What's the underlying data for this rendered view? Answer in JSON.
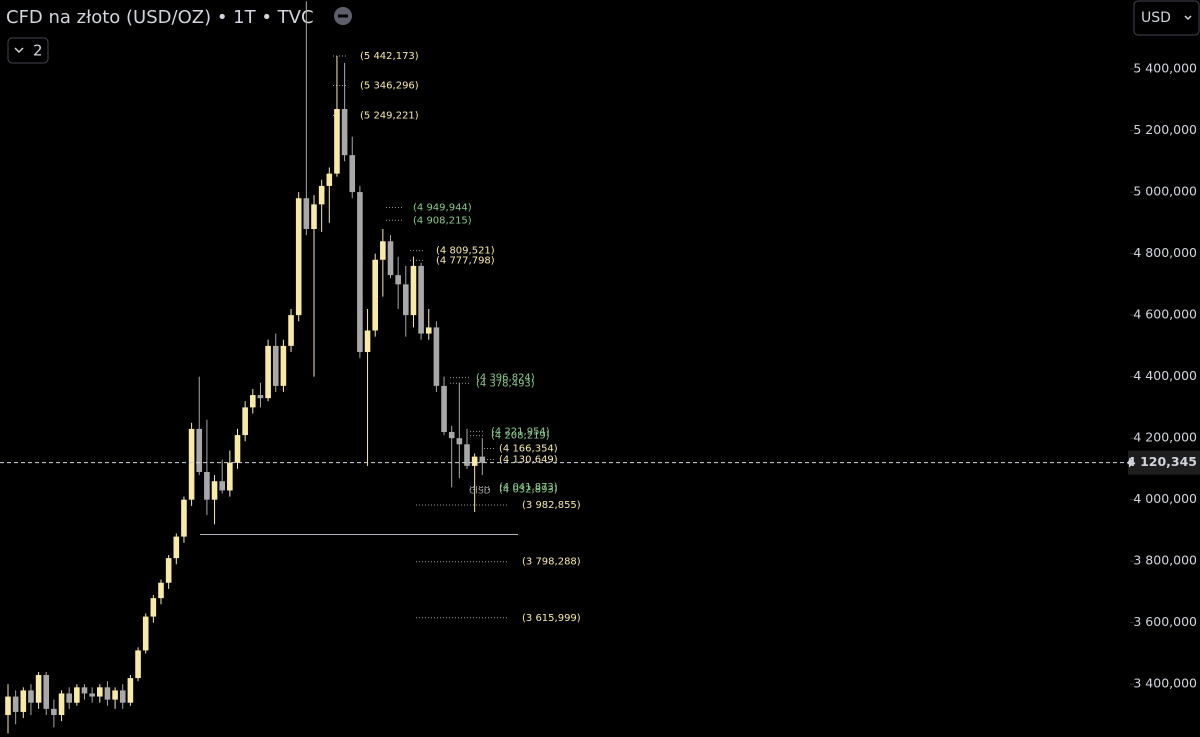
{
  "header": {
    "title": "CFD na złoto (USD/OZ) • 1T • TVC",
    "indicators_count": "2",
    "currency": "USD"
  },
  "chart_data": {
    "type": "candlestick",
    "up_color": "#f8eaa6",
    "down_color": "#a8a8a8",
    "open": [
      3300,
      3360,
      3310,
      3380,
      3340,
      3430,
      3320,
      3300,
      3370,
      3340,
      3390,
      3370,
      3360,
      3390,
      3350,
      3380,
      3340,
      3420,
      3510,
      3620,
      3680,
      3730,
      3810,
      3880,
      4000,
      4230,
      4090,
      4000,
      4060,
      4030,
      4120,
      4210,
      4300,
      4340,
      4330,
      4500,
      4370,
      4500,
      4600,
      4980,
      4880,
      4960,
      5020,
      5060,
      5270,
      5120,
      5000,
      4480,
      4550,
      4780,
      4840,
      4730,
      4700,
      4600,
      4760,
      4540,
      4560,
      4370,
      4220,
      4200,
      4180,
      4110,
      4140
    ],
    "high": [
      3400,
      3380,
      3390,
      3400,
      3440,
      3440,
      3350,
      3380,
      3390,
      3400,
      3400,
      3390,
      3400,
      3410,
      3390,
      3400,
      3430,
      3520,
      3630,
      3690,
      3740,
      3820,
      3890,
      4010,
      4250,
      4400,
      4260,
      4080,
      4130,
      4160,
      4230,
      4320,
      4360,
      4380,
      4520,
      4540,
      4520,
      4620,
      5000,
      5620,
      4990,
      5040,
      5080,
      5442,
      5420,
      5180,
      5020,
      4620,
      4800,
      4880,
      4860,
      4790,
      4760,
      4790,
      4770,
      4620,
      4580,
      4400,
      4240,
      4380,
      4230,
      4150,
      4200
    ],
    "low": [
      3240,
      3270,
      3290,
      3300,
      3320,
      3300,
      3260,
      3280,
      3320,
      3330,
      3350,
      3340,
      3340,
      3330,
      3320,
      3320,
      3330,
      3410,
      3500,
      3600,
      3660,
      3710,
      3790,
      3860,
      3980,
      4080,
      3950,
      3920,
      4020,
      4010,
      4100,
      4190,
      4280,
      4300,
      4320,
      4350,
      4350,
      4480,
      4580,
      4860,
      4400,
      4870,
      4900,
      5050,
      5100,
      4980,
      4460,
      4110,
      4530,
      4660,
      4720,
      4620,
      4530,
      4560,
      4520,
      4520,
      4350,
      4210,
      4040,
      4070,
      4100,
      3960,
      4080
    ],
    "close": [
      3360,
      3310,
      3380,
      3340,
      3430,
      3320,
      3300,
      3370,
      3340,
      3390,
      3370,
      3360,
      3390,
      3350,
      3380,
      3340,
      3420,
      3510,
      3620,
      3680,
      3730,
      3810,
      3880,
      4000,
      4230,
      4090,
      4000,
      4060,
      4030,
      4120,
      4210,
      4300,
      4340,
      4330,
      4500,
      4370,
      4500,
      4600,
      4980,
      4880,
      4960,
      5020,
      5060,
      5270,
      5120,
      5000,
      4480,
      4550,
      4780,
      4840,
      4730,
      4700,
      4600,
      4760,
      4540,
      4560,
      4370,
      4220,
      4200,
      4180,
      4110,
      4140,
      4120
    ],
    "ylim": [
      3228.5,
      5624.4
    ],
    "yticks": [
      {
        "value": 3400,
        "label": "3 400,000"
      },
      {
        "value": 3600,
        "label": "3 600,000"
      },
      {
        "value": 3800,
        "label": "3 800,000"
      },
      {
        "value": 4000,
        "label": "4 000,000"
      },
      {
        "value": 4200,
        "label": "4 200,000"
      },
      {
        "value": 4400,
        "label": "4 400,000"
      },
      {
        "value": 4600,
        "label": "4 600,000"
      },
      {
        "value": 4800,
        "label": "4 800,000"
      },
      {
        "value": 5000,
        "label": "5 000,000"
      },
      {
        "value": 5200,
        "label": "5 200,000"
      },
      {
        "value": 5400,
        "label": "5 400,000"
      }
    ],
    "last_price": {
      "value": 4120.345,
      "label": "4 120,345"
    },
    "support_line": 3887,
    "annotation": "CISD",
    "levels": [
      {
        "value": 5442.173,
        "label": "(5 442,173)",
        "color": "#f7e9a0"
      },
      {
        "value": 5346.296,
        "label": "(5 346,296)",
        "color": "#f7e9a0"
      },
      {
        "value": 5249.221,
        "label": "(5 249,221)",
        "color": "#f7e9a0"
      },
      {
        "value": 4949.944,
        "label": "(4 949,944)",
        "color": "#86c98a"
      },
      {
        "value": 4908.215,
        "label": "(4 908,215)",
        "color": "#86c98a"
      },
      {
        "value": 4809.521,
        "label": "(4 809,521)",
        "color": "#f7e9a0"
      },
      {
        "value": 4777.798,
        "label": "(4 777,798)",
        "color": "#f7e9a0"
      },
      {
        "value": 4396.824,
        "label": "(4 396,824)",
        "color": "#86c98a"
      },
      {
        "value": 4378.493,
        "label": "(4 378,493)",
        "color": "#86c98a"
      },
      {
        "value": 4221.954,
        "label": "(4 221,954)",
        "color": "#86c98a"
      },
      {
        "value": 4208.219,
        "label": "(4 208,219)",
        "color": "#86c98a"
      },
      {
        "value": 4166.354,
        "label": "(4 166,354)",
        "color": "#f7e9a0"
      },
      {
        "value": 4130.649,
        "label": "(4 130,649)",
        "color": "#f7e9a0"
      },
      {
        "value": 4041.873,
        "label": "(4 041,873)",
        "color": "#86c98a"
      },
      {
        "value": 4032.893,
        "label": "(4 032,893)",
        "color": "#86c98a"
      },
      {
        "value": 3982.855,
        "label": "(3 982,855)",
        "color": "#f7e9a0"
      },
      {
        "value": 3798.288,
        "label": "(3 798,288)",
        "color": "#f7e9a0"
      },
      {
        "value": 3615.999,
        "label": "(3 615,999)",
        "color": "#f7e9a0"
      }
    ]
  }
}
